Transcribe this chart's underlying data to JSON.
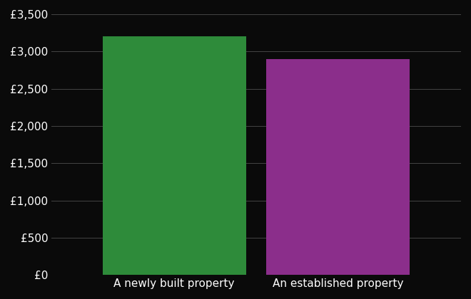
{
  "categories": [
    "A newly built property",
    "An established property"
  ],
  "values": [
    3200,
    2900
  ],
  "bar_colors": [
    "#2e8b3a",
    "#8b2e8b"
  ],
  "background_color": "#0a0a0a",
  "text_color": "#ffffff",
  "grid_color": "#444444",
  "ylim": [
    0,
    3500
  ],
  "yticks": [
    0,
    500,
    1000,
    1500,
    2000,
    2500,
    3000,
    3500
  ],
  "ytick_labels": [
    "£0",
    "£500",
    "£1,000",
    "£1,500",
    "£2,000",
    "£2,500",
    "£3,000",
    "£3,500"
  ],
  "bar_width": 0.35,
  "xlabel_fontsize": 11,
  "tick_fontsize": 11
}
